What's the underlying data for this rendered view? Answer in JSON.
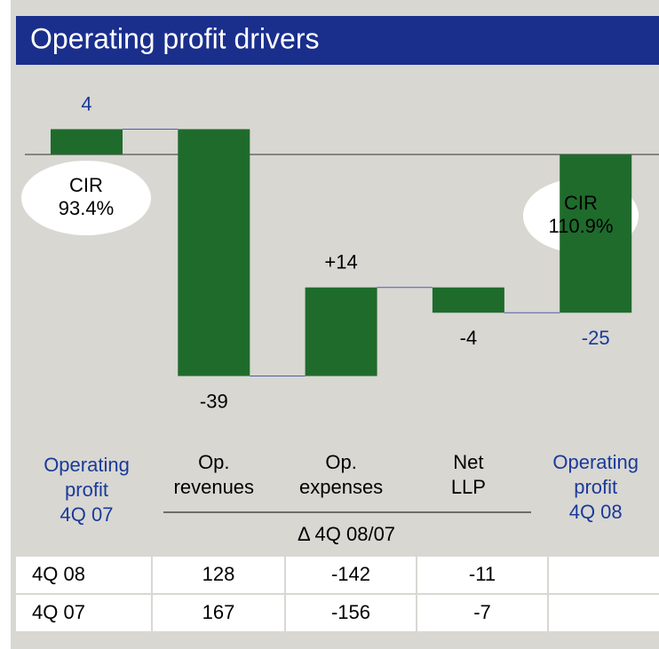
{
  "chart_data": {
    "type": "waterfall",
    "title": "Operating profit drivers",
    "categories": [
      "Operating\nprofit\n4Q 07",
      "Op.\nrevenues",
      "Op.\nexpenses",
      "Net\nLLP",
      "Operating\nprofit\n4Q 08"
    ],
    "values": [
      4,
      -39,
      14,
      -4,
      -25
    ],
    "value_labels": [
      "4",
      "-39",
      "+14",
      "-4",
      "-25"
    ],
    "color": "#1f6b2c",
    "annotations": [
      "CIR\n93.4%",
      "CIR\n110.9%"
    ],
    "group_label": "Δ 4Q 08/07"
  },
  "table": {
    "rows": [
      [
        "4Q 08",
        "128",
        "-142",
        "-11"
      ],
      [
        "4Q 07",
        "167",
        "-156",
        "-7"
      ]
    ]
  }
}
